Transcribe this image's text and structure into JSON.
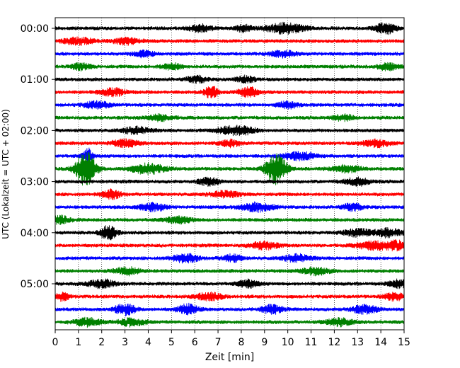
{
  "chart_data": {
    "type": "line",
    "subtype": "helicorder",
    "xlabel": "Zeit  [min]",
    "ylabel": "UTC (Lokalzeit = UTC + 02:00)",
    "xlim": [
      0,
      15
    ],
    "x_ticks": [
      "0",
      "1",
      "2",
      "3",
      "4",
      "5",
      "6",
      "7",
      "8",
      "9",
      "10",
      "11",
      "12",
      "13",
      "14",
      "15"
    ],
    "y_tick_labels": [
      "00:00",
      "01:00",
      "02:00",
      "03:00",
      "04:00",
      "05:00"
    ],
    "grid": "vertical dotted",
    "trace_colors": [
      "#000000",
      "#ff0000",
      "#0000ff",
      "#008000"
    ],
    "rows": 24,
    "row_minutes": 15,
    "traces": [
      {
        "start": "00:00",
        "color": "#000000",
        "events": [
          [
            6.2,
            0.35,
            1.4
          ],
          [
            8.1,
            0.25,
            1.3
          ],
          [
            9.9,
            0.6,
            2.0
          ],
          [
            14.2,
            0.3,
            2.2
          ]
        ]
      },
      {
        "start": "00:15",
        "color": "#ff0000",
        "events": [
          [
            1.0,
            0.5,
            1.2
          ],
          [
            3.1,
            0.4,
            1.2
          ]
        ]
      },
      {
        "start": "00:30",
        "color": "#0000ff",
        "events": [
          [
            3.8,
            0.3,
            1.2
          ],
          [
            9.8,
            0.4,
            1.2
          ]
        ]
      },
      {
        "start": "00:45",
        "color": "#008000",
        "events": [
          [
            1.1,
            0.3,
            1.2
          ],
          [
            5.0,
            0.3,
            1.2
          ],
          [
            14.3,
            0.3,
            1.3
          ]
        ]
      },
      {
        "start": "01:00",
        "color": "#000000",
        "events": [
          [
            6.1,
            0.3,
            1.2
          ],
          [
            8.2,
            0.3,
            1.2
          ]
        ]
      },
      {
        "start": "01:15",
        "color": "#ff0000",
        "events": [
          [
            2.5,
            0.4,
            1.4
          ],
          [
            6.7,
            0.2,
            2.4
          ],
          [
            8.3,
            0.3,
            2.0
          ]
        ]
      },
      {
        "start": "01:30",
        "color": "#0000ff",
        "events": [
          [
            1.8,
            0.4,
            1.3
          ],
          [
            10.0,
            0.3,
            1.3
          ]
        ]
      },
      {
        "start": "01:45",
        "color": "#008000",
        "events": [
          [
            4.5,
            0.4,
            1.2
          ],
          [
            12.4,
            0.3,
            1.2
          ]
        ]
      },
      {
        "start": "02:00",
        "color": "#000000",
        "events": [
          [
            3.5,
            0.4,
            1.3
          ],
          [
            7.5,
            0.4,
            1.5
          ],
          [
            8.2,
            0.3,
            1.3
          ]
        ]
      },
      {
        "start": "02:15",
        "color": "#ff0000",
        "events": [
          [
            3.0,
            0.4,
            1.4
          ],
          [
            7.5,
            0.3,
            1.3
          ],
          [
            13.8,
            0.4,
            1.4
          ]
        ]
      },
      {
        "start": "02:30",
        "color": "#0000ff",
        "events": [
          [
            1.4,
            0.15,
            3.0
          ],
          [
            10.5,
            0.5,
            1.5
          ]
        ]
      },
      {
        "start": "02:45",
        "color": "#008000",
        "events": [
          [
            1.3,
            0.3,
            7.0
          ],
          [
            4.0,
            0.5,
            2.0
          ],
          [
            9.5,
            0.3,
            6.5
          ],
          [
            12.5,
            0.4,
            1.5
          ]
        ]
      },
      {
        "start": "03:00",
        "color": "#000000",
        "events": [
          [
            6.6,
            0.3,
            1.5
          ],
          [
            13.0,
            0.4,
            1.4
          ]
        ]
      },
      {
        "start": "03:15",
        "color": "#ff0000",
        "events": [
          [
            2.4,
            0.3,
            1.7
          ],
          [
            7.3,
            0.4,
            1.3
          ]
        ]
      },
      {
        "start": "03:30",
        "color": "#0000ff",
        "events": [
          [
            4.2,
            0.4,
            1.4
          ],
          [
            8.7,
            0.5,
            1.6
          ],
          [
            12.8,
            0.3,
            1.3
          ]
        ]
      },
      {
        "start": "03:45",
        "color": "#008000",
        "events": [
          [
            0.2,
            0.3,
            1.6
          ],
          [
            5.3,
            0.4,
            1.3
          ]
        ]
      },
      {
        "start": "04:00",
        "color": "#000000",
        "events": [
          [
            2.3,
            0.25,
            2.8
          ],
          [
            13.0,
            0.4,
            1.5
          ],
          [
            14.3,
            0.4,
            1.6
          ]
        ]
      },
      {
        "start": "04:15",
        "color": "#ff0000",
        "events": [
          [
            9.0,
            0.4,
            1.5
          ],
          [
            13.7,
            0.5,
            1.6
          ],
          [
            14.7,
            0.3,
            1.6
          ]
        ]
      },
      {
        "start": "04:30",
        "color": "#0000ff",
        "events": [
          [
            5.6,
            0.4,
            1.6
          ],
          [
            7.6,
            0.3,
            1.4
          ],
          [
            10.4,
            0.4,
            1.4
          ]
        ]
      },
      {
        "start": "04:45",
        "color": "#008000",
        "events": [
          [
            3.1,
            0.4,
            1.4
          ],
          [
            11.2,
            0.4,
            1.4
          ]
        ]
      },
      {
        "start": "05:00",
        "color": "#000000",
        "events": [
          [
            2.0,
            0.4,
            1.6
          ],
          [
            8.3,
            0.3,
            1.5
          ],
          [
            14.8,
            0.3,
            1.6
          ]
        ]
      },
      {
        "start": "05:15",
        "color": "#ff0000",
        "events": [
          [
            0.3,
            0.2,
            1.6
          ],
          [
            6.6,
            0.4,
            1.5
          ],
          [
            14.6,
            0.3,
            1.5
          ]
        ]
      },
      {
        "start": "05:30",
        "color": "#0000ff",
        "events": [
          [
            3.0,
            0.3,
            2.2
          ],
          [
            5.7,
            0.3,
            2.0
          ],
          [
            9.3,
            0.3,
            1.7
          ],
          [
            13.3,
            0.4,
            1.6
          ]
        ]
      },
      {
        "start": "05:45",
        "color": "#008000",
        "events": [
          [
            1.4,
            0.4,
            1.5
          ],
          [
            3.3,
            0.4,
            1.5
          ],
          [
            12.2,
            0.4,
            1.5
          ]
        ]
      }
    ]
  }
}
